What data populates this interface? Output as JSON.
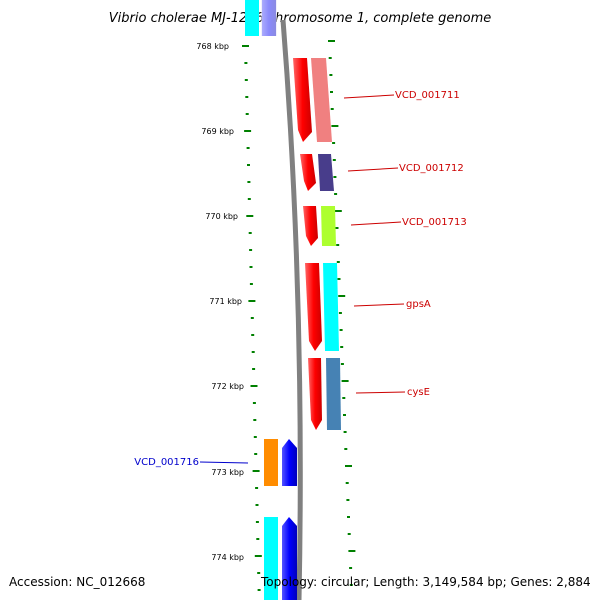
{
  "title": "Vibrio cholerae MJ-1236 chromosome 1, complete genome",
  "footer": {
    "accession": "Accession: NC_012668",
    "summary": "Topology: circular; Length: 3,149,584 bp; Genes: 2,884"
  },
  "ticks": [
    "768 kbp",
    "769 kbp",
    "770 kbp",
    "771 kbp",
    "772 kbp",
    "773 kbp",
    "774 kbp"
  ],
  "genes": [
    {
      "label": "VCD_001711",
      "strand": "plus",
      "color": "#f08080",
      "label_color": "#cc0000"
    },
    {
      "label": "VCD_001712",
      "strand": "plus",
      "color": "#483d8b",
      "label_color": "#cc0000"
    },
    {
      "label": "VCD_001713",
      "strand": "plus",
      "color": "#adff2f",
      "label_color": "#cc0000"
    },
    {
      "label": "gpsA",
      "strand": "plus",
      "color": "#00ffff",
      "label_color": "#cc0000"
    },
    {
      "label": "cysE",
      "strand": "plus",
      "color": "#4682b4",
      "label_color": "#cc0000"
    },
    {
      "label": "VCD_001716",
      "strand": "minus",
      "color": "#ff8c00",
      "label_color": "#0000cc"
    }
  ],
  "colors": {
    "strand_plus_track": "#ff0000",
    "strand_minus_track": "#0000ff",
    "backbone": "#808080",
    "tick": "#008000",
    "unlabeled_feature_cyan": "#00ffff"
  }
}
